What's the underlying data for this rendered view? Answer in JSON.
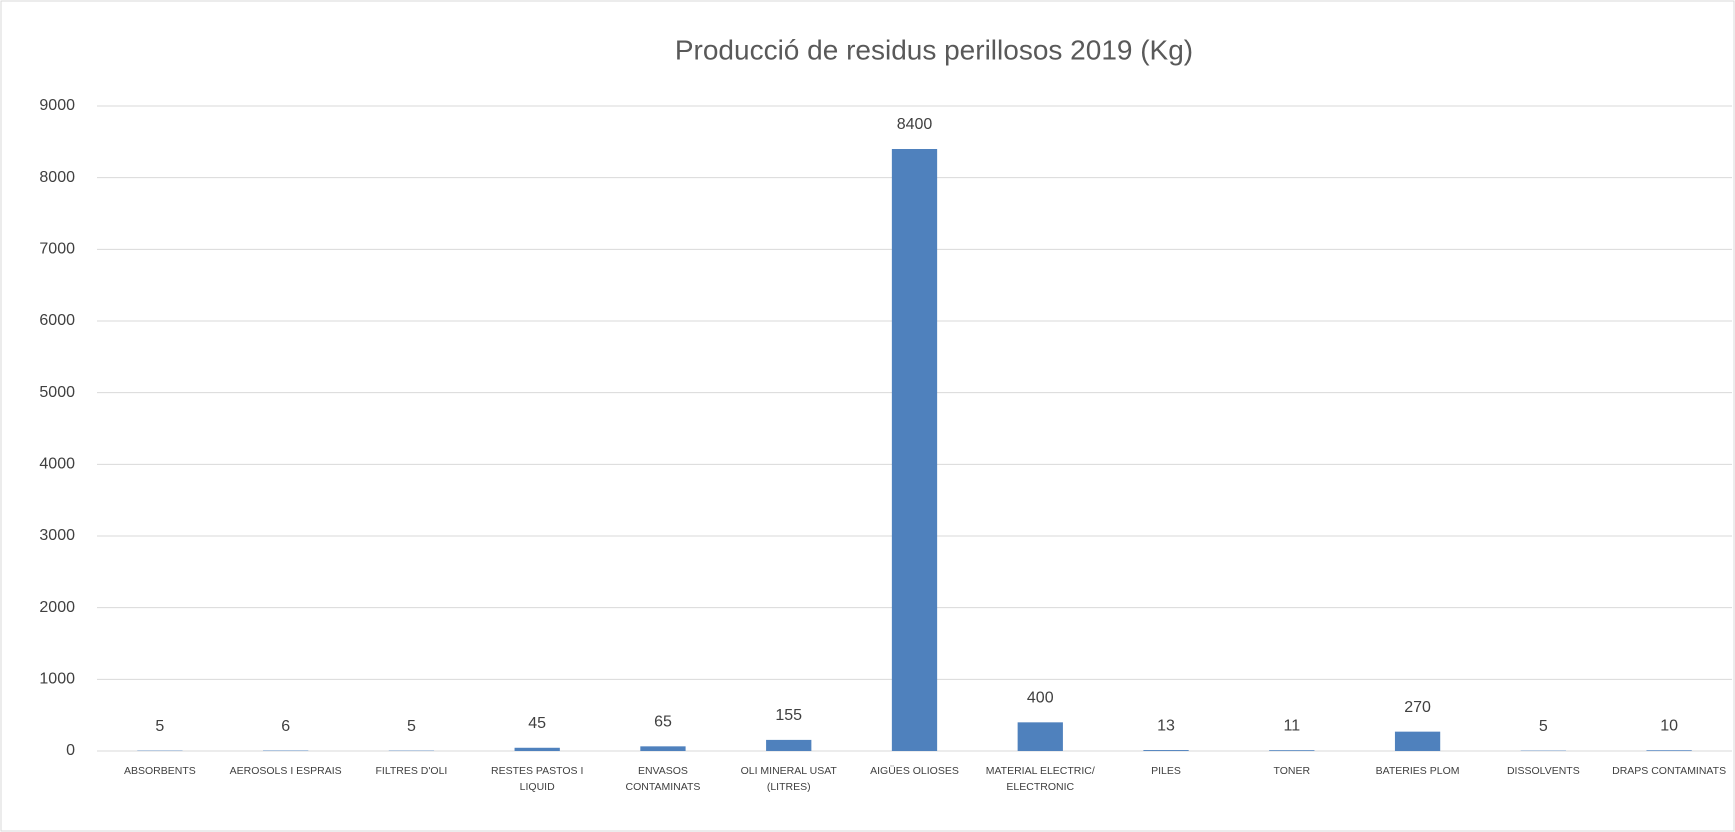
{
  "chart_data": {
    "type": "bar",
    "title": "Producció de residus perillosos 2019 (Kg)",
    "categories": [
      "ABSORBENTS",
      "AEROSOLS I ESPRAIS",
      "FILTRES D'OLI",
      "RESTES PASTOS I LIQUID",
      "ENVASOS CONTAMINATS",
      "OLI MINERAL USAT (LITRES)",
      "AIGÜES OLIOSES",
      "MATERIAL ELECTRIC/ ELECTRONIC",
      "PILES",
      "TONER",
      "BATERIES PLOM",
      "DISSOLVENTS",
      "DRAPS CONTAMINATS"
    ],
    "values": [
      5,
      6,
      5,
      45,
      65,
      155,
      8400,
      400,
      13,
      11,
      270,
      5,
      10
    ],
    "color": "#4f81bd",
    "ylim": [
      0,
      9000
    ],
    "yticks": [
      0,
      1000,
      2000,
      3000,
      4000,
      5000,
      6000,
      7000,
      8000,
      9000
    ],
    "grid": true
  }
}
